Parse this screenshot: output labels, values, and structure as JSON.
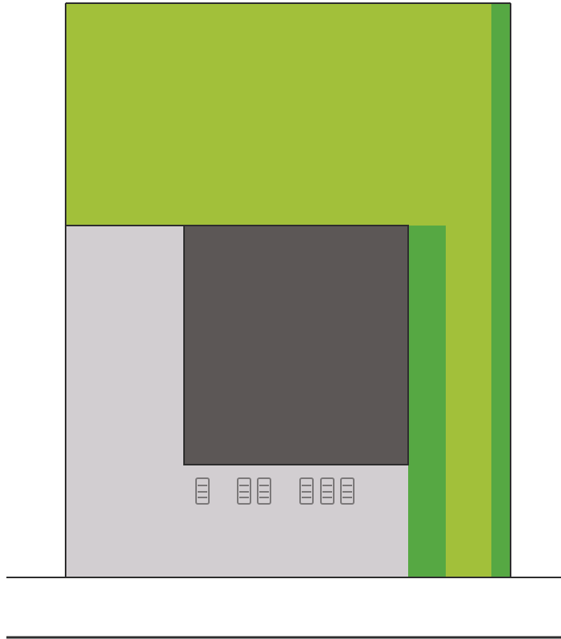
{
  "colors": {
    "background": "#ffffff",
    "lime_green": "#a2c03a",
    "strip_green": "#56a843",
    "light_gray": "#d2ced1",
    "dark_gray": "#5c5756",
    "outline": "#2d2d2d",
    "car": "#7b7879"
  },
  "parked_cars": 6
}
